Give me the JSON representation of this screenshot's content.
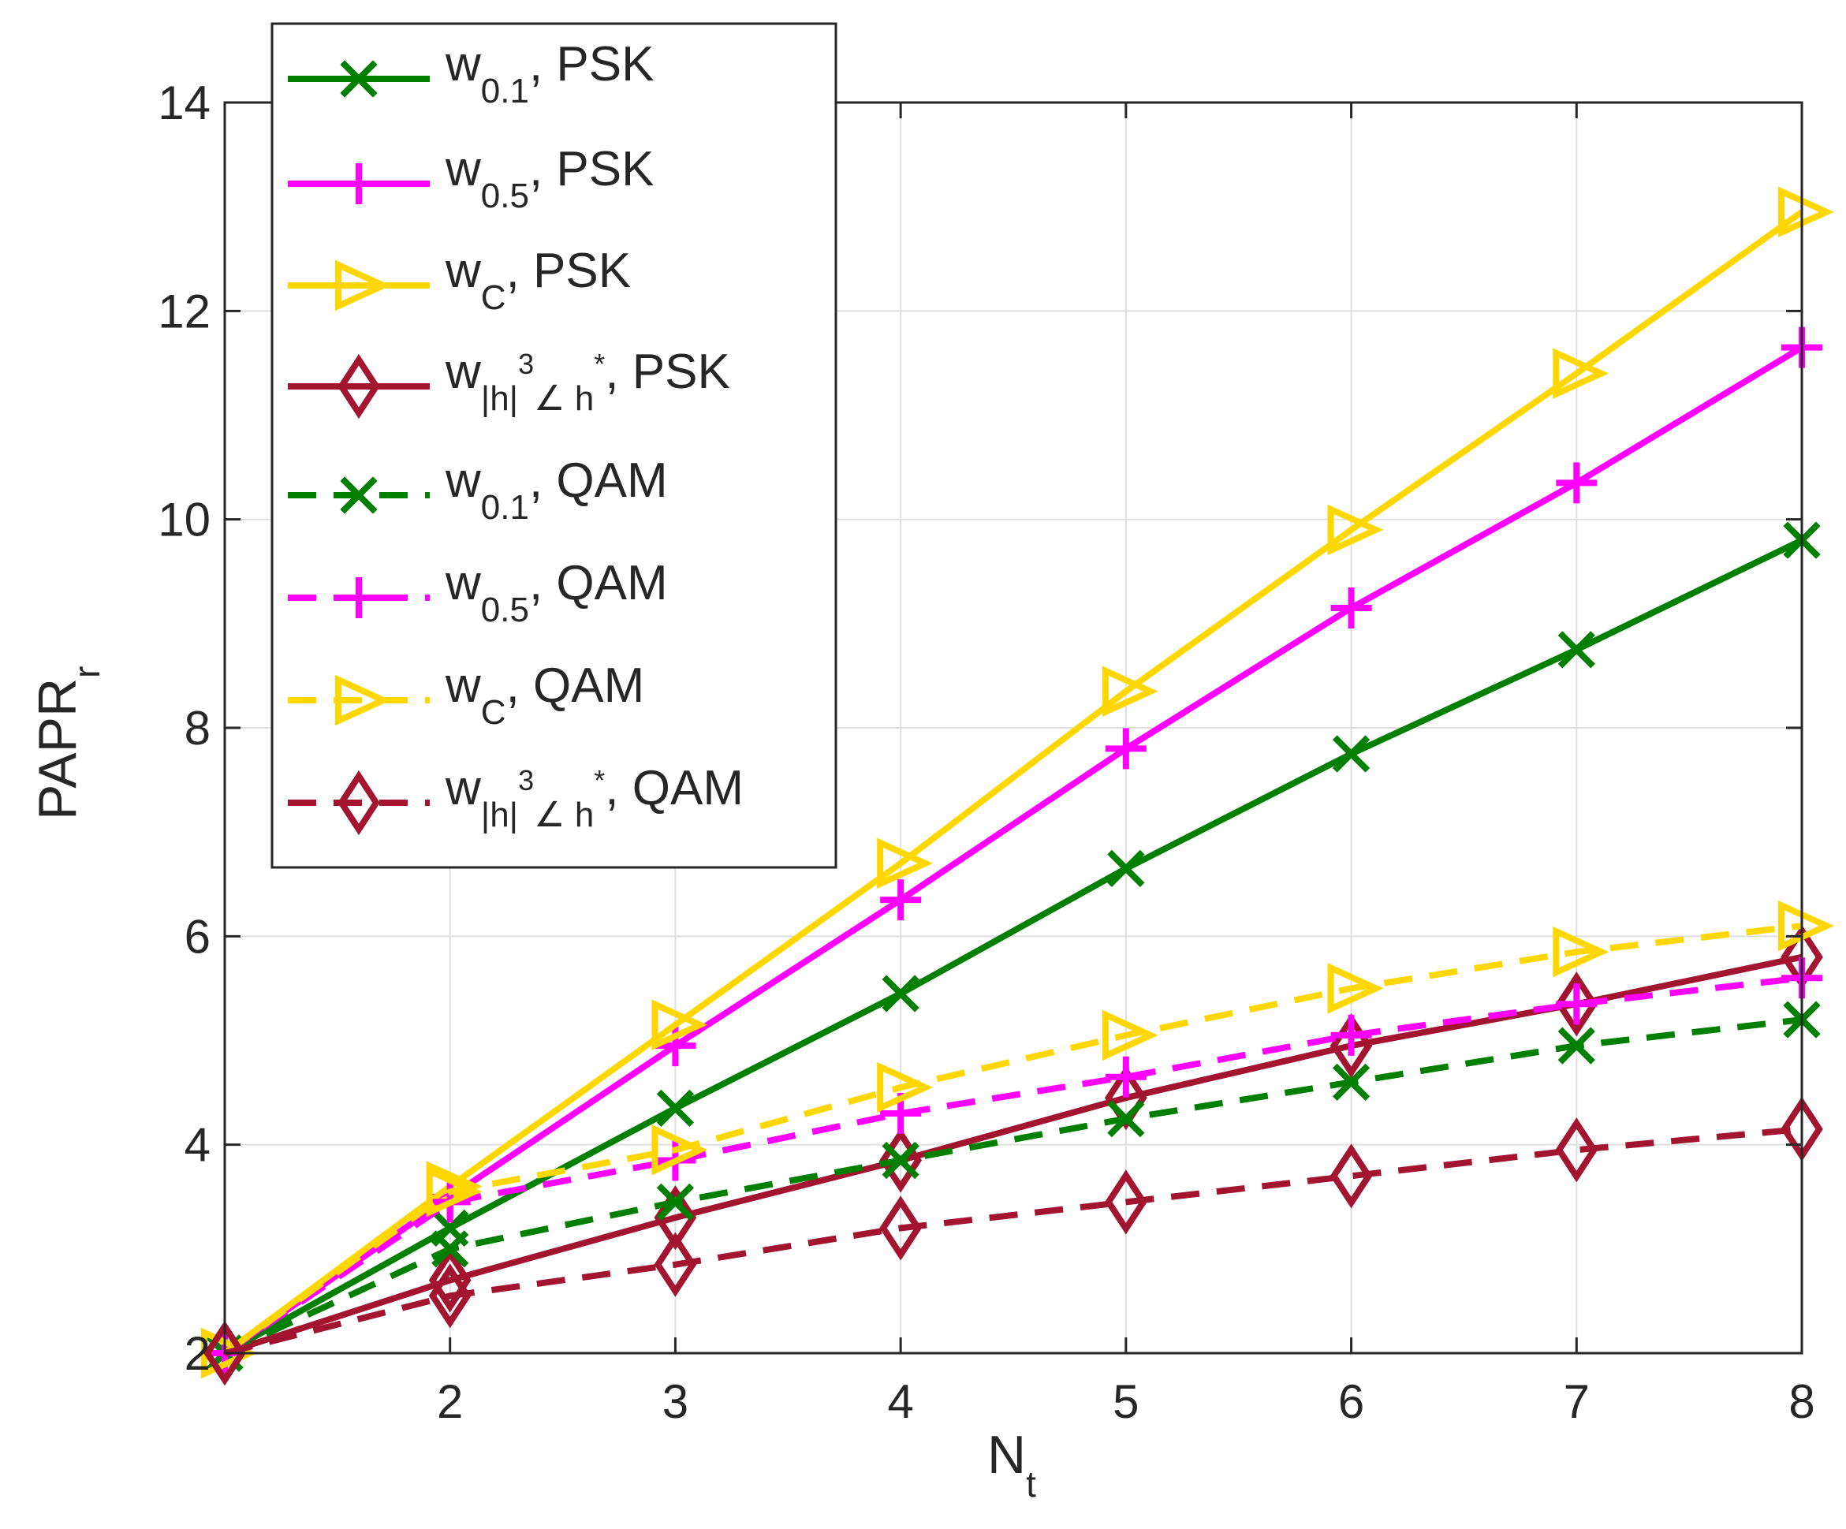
{
  "chart_data": {
    "type": "line",
    "title": "",
    "xlabel": {
      "main": "N",
      "sub": "t"
    },
    "ylabel": {
      "main": "PAPR",
      "sub": "r"
    },
    "x": [
      1,
      2,
      3,
      4,
      5,
      6,
      7,
      8
    ],
    "xlim": [
      1,
      8
    ],
    "ylim": [
      2,
      14
    ],
    "xticks": [
      2,
      3,
      4,
      5,
      6,
      7,
      8
    ],
    "yticks": [
      2,
      4,
      6,
      8,
      10,
      12,
      14
    ],
    "xtick_labels": [
      "2",
      "3",
      "4",
      "5",
      "6",
      "7",
      "8"
    ],
    "ytick_labels": [
      "2",
      "4",
      "6",
      "8",
      "10",
      "12",
      "14"
    ],
    "grid": true,
    "legend_position": "top-left",
    "series": [
      {
        "name": "w_{0.1}, PSK",
        "legend": {
          "base": "w",
          "sub": "0.1",
          "sup": "",
          "tail": ", PSK"
        },
        "color": "#007F00",
        "dash": "solid",
        "marker": "x",
        "values": [
          2.0,
          3.2,
          4.35,
          5.45,
          6.65,
          7.75,
          8.75,
          9.8
        ]
      },
      {
        "name": "w_{0.5}, PSK",
        "legend": {
          "base": "w",
          "sub": "0.5",
          "sup": "",
          "tail": ", PSK"
        },
        "color": "#FF00FF",
        "dash": "solid",
        "marker": "plus",
        "values": [
          2.0,
          3.5,
          4.95,
          6.35,
          7.8,
          9.15,
          10.35,
          11.65
        ]
      },
      {
        "name": "w_C, PSK",
        "legend": {
          "base": "w",
          "sub": "C",
          "sup": "",
          "tail": ", PSK"
        },
        "color": "#FFD700",
        "dash": "solid",
        "marker": "triangle-right",
        "values": [
          2.0,
          3.6,
          5.15,
          6.7,
          8.35,
          9.9,
          11.4,
          12.95
        ]
      },
      {
        "name": "w_{|h|^3∠h*}, PSK",
        "legend": {
          "base": "w",
          "sub": "|h|",
          "sup": "3",
          "sub2": "∠ h",
          "sup2": "*",
          "tail": ", PSK"
        },
        "color": "#A2142F",
        "dash": "solid",
        "marker": "diamond",
        "values": [
          2.0,
          2.7,
          3.3,
          3.85,
          4.45,
          4.95,
          5.35,
          5.8
        ]
      },
      {
        "name": "w_{0.1}, QAM",
        "legend": {
          "base": "w",
          "sub": "0.1",
          "sup": "",
          "tail": ", QAM"
        },
        "color": "#007F00",
        "dash": "dashed",
        "marker": "x",
        "values": [
          2.0,
          3.0,
          3.45,
          3.85,
          4.25,
          4.6,
          4.95,
          5.2
        ]
      },
      {
        "name": "w_{0.5}, QAM",
        "legend": {
          "base": "w",
          "sub": "0.5",
          "sup": "",
          "tail": ", QAM"
        },
        "color": "#FF00FF",
        "dash": "dashed",
        "marker": "plus",
        "values": [
          2.0,
          3.45,
          3.85,
          4.3,
          4.65,
          5.05,
          5.35,
          5.6
        ]
      },
      {
        "name": "w_C, QAM",
        "legend": {
          "base": "w",
          "sub": "C",
          "sup": "",
          "tail": ", QAM"
        },
        "color": "#FFD700",
        "dash": "dashed",
        "marker": "triangle-right",
        "values": [
          2.0,
          3.55,
          3.95,
          4.55,
          5.05,
          5.5,
          5.85,
          6.1
        ]
      },
      {
        "name": "w_{|h|^3∠h*}, QAM",
        "legend": {
          "base": "w",
          "sub": "|h|",
          "sup": "3",
          "sub2": "∠ h",
          "sup2": "*",
          "tail": ", QAM"
        },
        "color": "#A2142F",
        "dash": "dashed",
        "marker": "diamond",
        "values": [
          2.0,
          2.55,
          2.85,
          3.2,
          3.45,
          3.7,
          3.95,
          4.15
        ]
      }
    ]
  }
}
